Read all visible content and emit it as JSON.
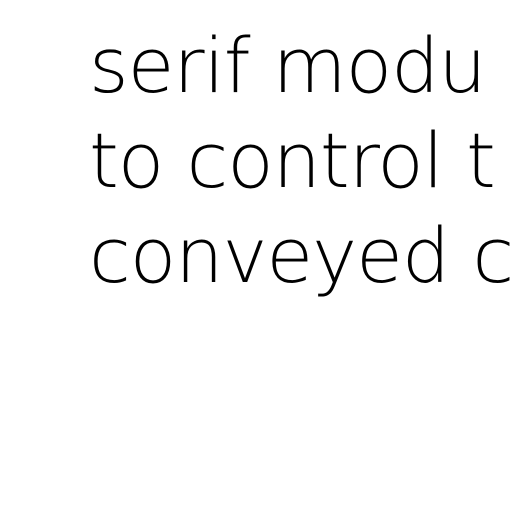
{
  "document": {
    "lines": [
      "serif modu",
      "to control t",
      "conveyed c"
    ],
    "text_color": "#000000",
    "background_color": "#ffffff"
  }
}
